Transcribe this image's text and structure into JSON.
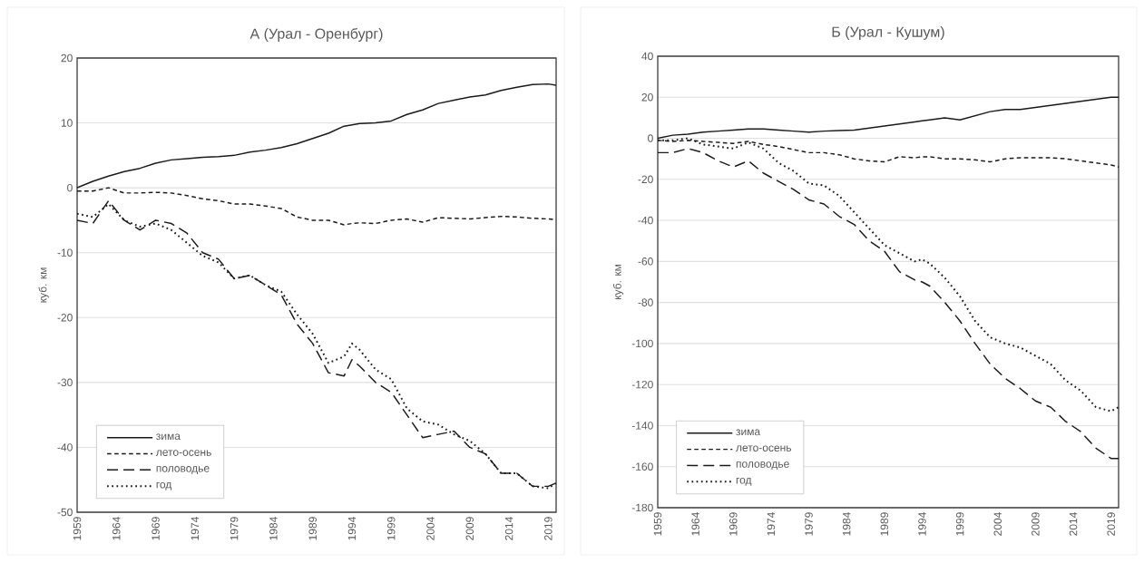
{
  "chart_data": [
    {
      "type": "line",
      "title": "А (Урал - Оренбург)",
      "ylabel": "куб. км",
      "x": [
        1959,
        1961,
        1963,
        1965,
        1967,
        1969,
        1971,
        1973,
        1975,
        1977,
        1979,
        1981,
        1983,
        1985,
        1987,
        1989,
        1991,
        1993,
        1994,
        1995,
        1997,
        1999,
        2001,
        2003,
        2005,
        2007,
        2009,
        2011,
        2013,
        2015,
        2017,
        2019,
        2020
      ],
      "xlim": [
        1959,
        2020
      ],
      "xticks": [
        1959,
        1964,
        1969,
        1974,
        1979,
        1984,
        1989,
        1994,
        1999,
        2004,
        2009,
        2014,
        2019
      ],
      "ylim": [
        -50,
        20
      ],
      "yticks": [
        -50,
        -40,
        -30,
        -20,
        -10,
        0,
        10,
        20
      ],
      "grid": "y",
      "legend": "bottom left",
      "series": [
        {
          "name": "зима",
          "color": "#1a1a1a",
          "line_style": "solid",
          "values": [
            0,
            1,
            1.8,
            2.5,
            3,
            3.8,
            4.3,
            4.5,
            4.7,
            4.8,
            5,
            5.5,
            5.8,
            6.2,
            6.8,
            7.6,
            8.4,
            9.5,
            9.7,
            9.9,
            10,
            10.3,
            11.3,
            12,
            13,
            13.5,
            14,
            14.3,
            15,
            15.5,
            15.9,
            16,
            15.8
          ]
        },
        {
          "name": "лето-осень",
          "color": "#1a1a1a",
          "line_style": "dashed",
          "values": [
            -0.5,
            -0.5,
            0,
            -0.8,
            -0.8,
            -0.7,
            -0.8,
            -1.2,
            -1.7,
            -2,
            -2.5,
            -2.5,
            -2.8,
            -3.2,
            -4.5,
            -5,
            -5,
            -5.7,
            -5.5,
            -5.4,
            -5.5,
            -5,
            -4.8,
            -5.3,
            -4.6,
            -4.7,
            -4.8,
            -4.6,
            -4.4,
            -4.5,
            -4.7,
            -4.8,
            -4.9
          ]
        },
        {
          "name": "половодье",
          "color": "#1a1a1a",
          "line_style": "dashed",
          "values": [
            -5,
            -5.5,
            -2,
            -5,
            -6.5,
            -5,
            -5.5,
            -7,
            -10,
            -11,
            -14,
            -13.5,
            -15,
            -16.5,
            -21,
            -24,
            -28.5,
            -29,
            -26.5,
            -27.5,
            -30,
            -31.5,
            -35,
            -38.5,
            -38,
            -37.5,
            -40,
            -41,
            -44,
            -44,
            -46,
            -46,
            -45.5
          ]
        },
        {
          "name": "год",
          "color": "#1a1a1a",
          "line_style": "dotted",
          "values": [
            -4,
            -4.5,
            -2.5,
            -5,
            -6,
            -5.5,
            -6.5,
            -8.5,
            -10.5,
            -11.5,
            -14,
            -13.5,
            -15,
            -16,
            -19.5,
            -22.5,
            -27,
            -26,
            -24,
            -25,
            -28,
            -29.5,
            -34,
            -36,
            -36.5,
            -38,
            -39,
            -41,
            -44,
            -44,
            -46,
            -46.3,
            -45.5
          ]
        }
      ]
    },
    {
      "type": "line",
      "title": "Б (Урал - Кушум)",
      "ylabel": "куб. км",
      "x": [
        1959,
        1961,
        1963,
        1965,
        1967,
        1969,
        1971,
        1973,
        1975,
        1977,
        1979,
        1981,
        1983,
        1985,
        1987,
        1989,
        1991,
        1993,
        1994,
        1995,
        1997,
        1999,
        2001,
        2003,
        2005,
        2007,
        2009,
        2011,
        2013,
        2015,
        2017,
        2019,
        2020
      ],
      "xlim": [
        1959,
        2020
      ],
      "xticks": [
        1959,
        1964,
        1969,
        1974,
        1979,
        1984,
        1989,
        1994,
        1999,
        2004,
        2009,
        2014,
        2019
      ],
      "ylim": [
        -180,
        40
      ],
      "yticks": [
        -180,
        -160,
        -140,
        -120,
        -100,
        -80,
        -60,
        -40,
        -20,
        0,
        20,
        40
      ],
      "grid": "y",
      "legend": "bottom left",
      "series": [
        {
          "name": "зима",
          "color": "#1a1a1a",
          "line_style": "solid",
          "values": [
            0,
            1.5,
            2,
            3,
            3.5,
            4,
            4.5,
            4.5,
            4,
            3.5,
            3,
            3.5,
            3.8,
            4,
            5,
            6,
            7,
            8,
            8.5,
            9,
            10,
            9,
            11,
            13,
            14,
            14,
            15,
            16,
            17,
            18,
            19,
            20,
            20
          ]
        },
        {
          "name": "лето-осень",
          "color": "#1a1a1a",
          "line_style": "dashed",
          "values": [
            -1,
            -1.5,
            -1,
            -1.5,
            -2,
            -2.5,
            -1.5,
            -3,
            -4,
            -5.5,
            -7,
            -7,
            -8,
            -10,
            -11,
            -11.5,
            -9,
            -9.5,
            -9,
            -9,
            -10,
            -10,
            -10.5,
            -11.5,
            -10,
            -9.5,
            -9.5,
            -9.5,
            -10,
            -11,
            -12,
            -13,
            -14
          ]
        },
        {
          "name": "половодье",
          "color": "#1a1a1a",
          "line_style": "dashed",
          "values": [
            -7,
            -7,
            -5,
            -7,
            -11,
            -14,
            -11,
            -17,
            -21,
            -25,
            -30,
            -32,
            -38,
            -42,
            -50,
            -55,
            -65,
            -69,
            -70,
            -72,
            -80,
            -89,
            -100,
            -110,
            -117,
            -122,
            -128,
            -131,
            -138,
            -143,
            -151,
            -156,
            -156
          ]
        },
        {
          "name": "год",
          "color": "#1a1a1a",
          "line_style": "dotted",
          "values": [
            -1,
            -1,
            0,
            -3,
            -4,
            -5,
            -2,
            -5,
            -12,
            -16,
            -22,
            -23,
            -28,
            -36,
            -44,
            -52,
            -56,
            -60,
            -59,
            -61,
            -68,
            -77,
            -89,
            -97,
            -100,
            -102,
            -106,
            -110,
            -118,
            -123,
            -131,
            -133,
            -131
          ]
        }
      ]
    }
  ]
}
